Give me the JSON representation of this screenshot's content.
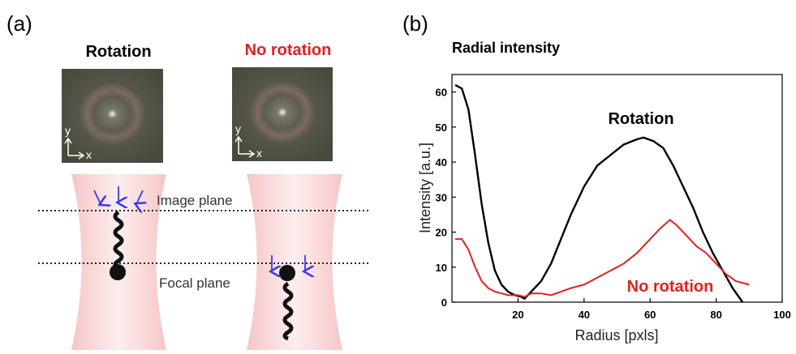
{
  "panel_a": {
    "label": "(a)",
    "left_title": "Rotation",
    "right_title": "No rotation",
    "image_plane": "Image plane",
    "focal_plane": "Focal plane",
    "left_axes": {
      "y": "y",
      "x": "x"
    },
    "right_axes": {
      "y": "y",
      "x": "x"
    }
  },
  "chart_data": {
    "type": "line",
    "panel_label": "(b)",
    "title": "Radial intensity",
    "x_label": "Radius [pxls]",
    "y_label": "Intensity [a.u.]",
    "xlim": [
      0,
      100
    ],
    "xticks": [
      20,
      40,
      60,
      80,
      100
    ],
    "ylim": [
      0,
      65
    ],
    "yticks": [
      0,
      10,
      20,
      30,
      40,
      50,
      60
    ],
    "series": [
      {
        "name": "Rotation",
        "color": "#000000",
        "x": [
          1,
          3,
          5,
          7,
          9,
          11,
          13,
          15,
          17,
          19,
          21,
          22,
          24,
          27,
          30,
          33,
          36,
          40,
          44,
          48,
          52,
          56,
          58,
          61,
          64,
          67,
          70,
          73,
          76,
          79,
          82,
          85,
          88
        ],
        "values": [
          62,
          61,
          55,
          42,
          28,
          17,
          9,
          5,
          3,
          2,
          1.5,
          1,
          3,
          6,
          11,
          18,
          25,
          33,
          39,
          42,
          45,
          46.5,
          47,
          46,
          44,
          39,
          33,
          27,
          20,
          14,
          9,
          4,
          0
        ]
      },
      {
        "name": "No rotation",
        "color": "#e0201e",
        "x": [
          1,
          3,
          5,
          7,
          9,
          11,
          13,
          15,
          17,
          20,
          22,
          24,
          27,
          30,
          33,
          36,
          40,
          44,
          48,
          52,
          56,
          60,
          63,
          66,
          68,
          71,
          74,
          77,
          80,
          83,
          86,
          90
        ],
        "values": [
          18,
          18,
          15,
          10,
          6,
          4,
          3,
          2.5,
          2,
          2,
          1.5,
          2.5,
          2.5,
          2,
          3,
          4,
          5,
          7,
          9,
          11,
          14,
          18,
          21,
          23.5,
          22,
          19,
          16,
          14,
          11,
          8,
          6,
          5
        ]
      }
    ]
  }
}
